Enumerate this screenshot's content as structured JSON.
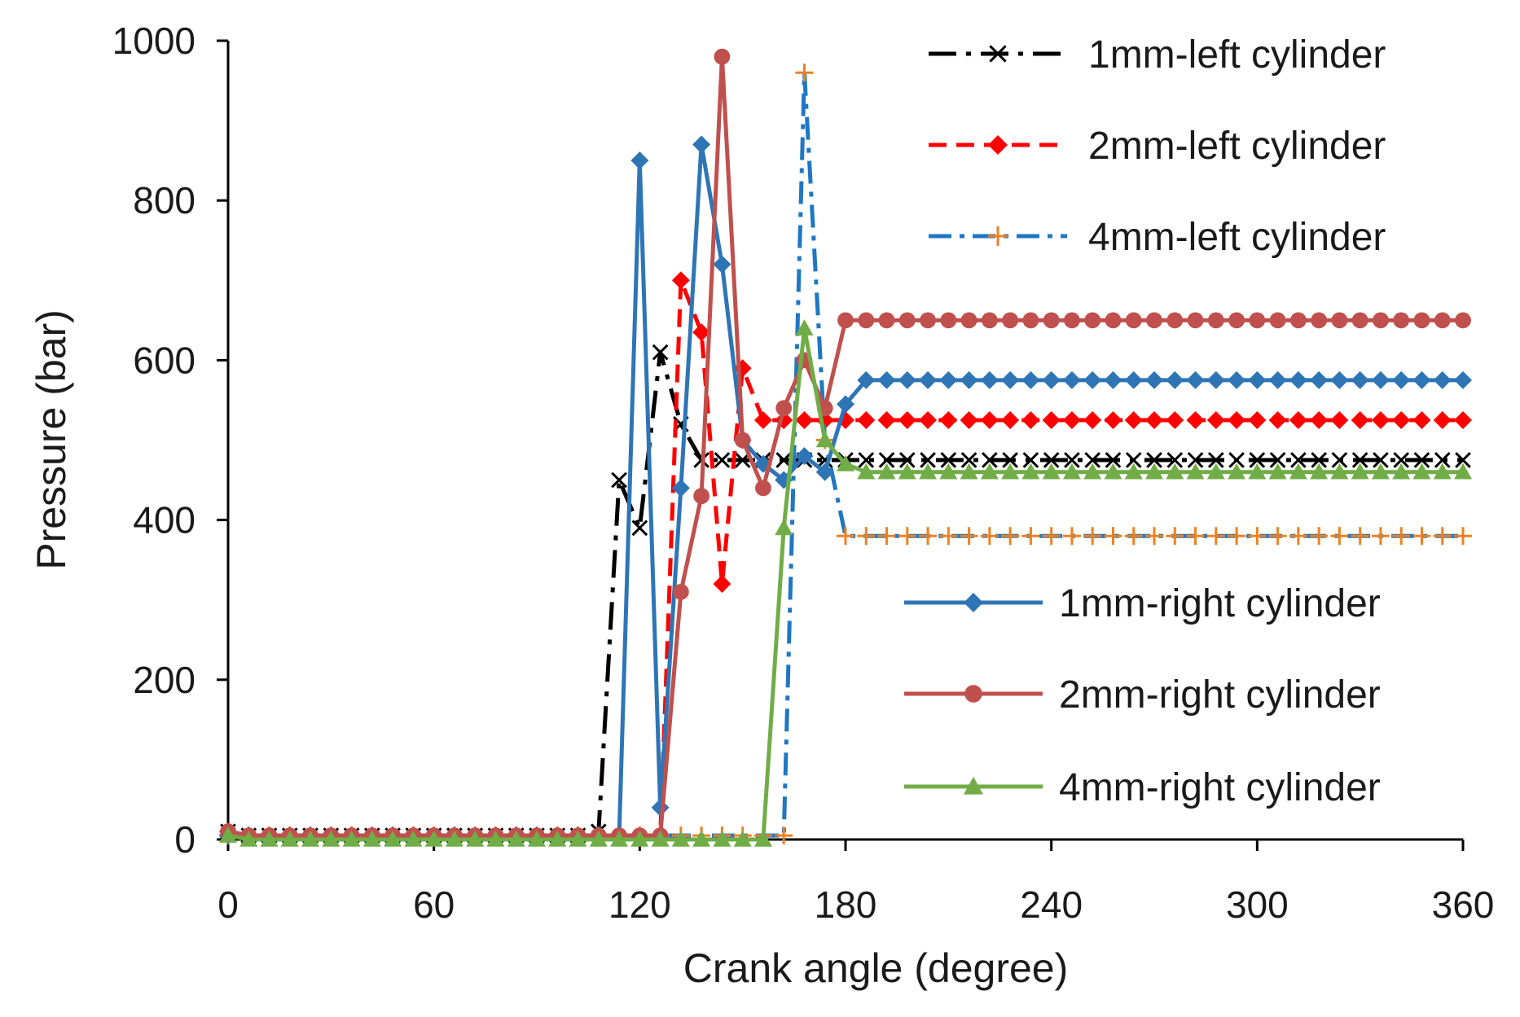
{
  "chart_data": {
    "type": "line",
    "title": "",
    "xlabel": "Crank angle (degree)",
    "ylabel": "Pressure (bar)",
    "xlim": [
      0,
      360
    ],
    "ylim": [
      0,
      1000
    ],
    "xticks": [
      0,
      60,
      120,
      180,
      240,
      300,
      360
    ],
    "yticks": [
      0,
      200,
      400,
      600,
      800,
      1000
    ],
    "grid": false,
    "legend_position": "right",
    "series": [
      {
        "name": "1mm-left cylinder",
        "color": "#000000",
        "dash": "long-dash-dot",
        "marker": "x",
        "marker_color": "#000000",
        "x": [
          0,
          6,
          12,
          18,
          24,
          30,
          36,
          42,
          48,
          54,
          60,
          66,
          72,
          78,
          84,
          90,
          96,
          102,
          108,
          114,
          120,
          126,
          132,
          138,
          144,
          150,
          156,
          162,
          168,
          174,
          180,
          186,
          192,
          198,
          204,
          210,
          216,
          222,
          228,
          234,
          240,
          246,
          252,
          258,
          264,
          270,
          276,
          282,
          288,
          294,
          300,
          306,
          312,
          318,
          324,
          330,
          336,
          342,
          348,
          354,
          360
        ],
        "y": [
          10,
          5,
          5,
          5,
          5,
          5,
          5,
          5,
          5,
          5,
          5,
          5,
          5,
          5,
          5,
          5,
          5,
          5,
          10,
          450,
          390,
          610,
          520,
          475,
          475,
          475,
          475,
          475,
          475,
          475,
          475,
          475,
          475,
          475,
          475,
          475,
          475,
          475,
          475,
          475,
          475,
          475,
          475,
          475,
          475,
          475,
          475,
          475,
          475,
          475,
          475,
          475,
          475,
          475,
          475,
          475,
          475,
          475,
          475,
          475,
          475
        ]
      },
      {
        "name": "2mm-left cylinder",
        "color": "#ff0000",
        "dash": "dash",
        "marker": "diamond",
        "marker_color": "#ff0000",
        "x": [
          0,
          6,
          12,
          18,
          24,
          30,
          36,
          42,
          48,
          54,
          60,
          66,
          72,
          78,
          84,
          90,
          96,
          102,
          108,
          114,
          120,
          126,
          132,
          138,
          144,
          150,
          156,
          162,
          168,
          174,
          180,
          186,
          192,
          198,
          204,
          210,
          216,
          222,
          228,
          234,
          240,
          246,
          252,
          258,
          264,
          270,
          276,
          282,
          288,
          294,
          300,
          306,
          312,
          318,
          324,
          330,
          336,
          342,
          348,
          354,
          360
        ],
        "y": [
          10,
          5,
          5,
          5,
          5,
          5,
          5,
          5,
          5,
          5,
          5,
          5,
          5,
          5,
          5,
          5,
          5,
          5,
          5,
          5,
          5,
          5,
          700,
          635,
          320,
          590,
          525,
          525,
          525,
          525,
          525,
          525,
          525,
          525,
          525,
          525,
          525,
          525,
          525,
          525,
          525,
          525,
          525,
          525,
          525,
          525,
          525,
          525,
          525,
          525,
          525,
          525,
          525,
          525,
          525,
          525,
          525,
          525,
          525,
          525,
          525
        ]
      },
      {
        "name": "4mm-left cylinder",
        "color": "#1f77c4",
        "dash": "dash-dot",
        "marker": "plus",
        "marker_color": "#f08020",
        "x": [
          0,
          6,
          12,
          18,
          24,
          30,
          36,
          42,
          48,
          54,
          60,
          66,
          72,
          78,
          84,
          90,
          96,
          102,
          108,
          114,
          120,
          126,
          132,
          138,
          144,
          150,
          156,
          162,
          168,
          174,
          180,
          186,
          192,
          198,
          204,
          210,
          216,
          222,
          228,
          234,
          240,
          246,
          252,
          258,
          264,
          270,
          276,
          282,
          288,
          294,
          300,
          306,
          312,
          318,
          324,
          330,
          336,
          342,
          348,
          354,
          360
        ],
        "y": [
          5,
          5,
          5,
          5,
          5,
          5,
          5,
          5,
          5,
          5,
          5,
          5,
          5,
          5,
          5,
          5,
          5,
          5,
          5,
          5,
          5,
          5,
          5,
          5,
          5,
          5,
          5,
          5,
          960,
          500,
          380,
          380,
          380,
          380,
          380,
          380,
          380,
          380,
          380,
          380,
          380,
          380,
          380,
          380,
          380,
          380,
          380,
          380,
          380,
          380,
          380,
          380,
          380,
          380,
          380,
          380,
          380,
          380,
          380,
          380,
          380
        ]
      },
      {
        "name": "1mm-right cylinder",
        "color": "#2e75b6",
        "dash": "solid",
        "marker": "diamond",
        "marker_color": "#2e75b6",
        "x": [
          0,
          6,
          12,
          18,
          24,
          30,
          36,
          42,
          48,
          54,
          60,
          66,
          72,
          78,
          84,
          90,
          96,
          102,
          108,
          114,
          120,
          126,
          132,
          138,
          144,
          150,
          156,
          162,
          168,
          174,
          180,
          186,
          192,
          198,
          204,
          210,
          216,
          222,
          228,
          234,
          240,
          246,
          252,
          258,
          264,
          270,
          276,
          282,
          288,
          294,
          300,
          306,
          312,
          318,
          324,
          330,
          336,
          342,
          348,
          354,
          360
        ],
        "y": [
          5,
          5,
          5,
          5,
          5,
          5,
          5,
          5,
          5,
          5,
          5,
          5,
          5,
          5,
          5,
          5,
          5,
          5,
          5,
          5,
          850,
          40,
          440,
          870,
          720,
          500,
          470,
          450,
          480,
          460,
          545,
          575,
          575,
          575,
          575,
          575,
          575,
          575,
          575,
          575,
          575,
          575,
          575,
          575,
          575,
          575,
          575,
          575,
          575,
          575,
          575,
          575,
          575,
          575,
          575,
          575,
          575,
          575,
          575,
          575,
          575
        ]
      },
      {
        "name": "2mm-right cylinder",
        "color": "#c0504d",
        "dash": "solid",
        "marker": "circle",
        "marker_color": "#c0504d",
        "x": [
          0,
          6,
          12,
          18,
          24,
          30,
          36,
          42,
          48,
          54,
          60,
          66,
          72,
          78,
          84,
          90,
          96,
          102,
          108,
          114,
          120,
          126,
          132,
          138,
          144,
          150,
          156,
          162,
          168,
          174,
          180,
          186,
          192,
          198,
          204,
          210,
          216,
          222,
          228,
          234,
          240,
          246,
          252,
          258,
          264,
          270,
          276,
          282,
          288,
          294,
          300,
          306,
          312,
          318,
          324,
          330,
          336,
          342,
          348,
          354,
          360
        ],
        "y": [
          10,
          5,
          5,
          5,
          5,
          5,
          5,
          5,
          5,
          5,
          5,
          5,
          5,
          5,
          5,
          5,
          5,
          5,
          5,
          5,
          5,
          5,
          310,
          430,
          980,
          500,
          440,
          540,
          600,
          540,
          650,
          650,
          650,
          650,
          650,
          650,
          650,
          650,
          650,
          650,
          650,
          650,
          650,
          650,
          650,
          650,
          650,
          650,
          650,
          650,
          650,
          650,
          650,
          650,
          650,
          650,
          650,
          650,
          650,
          650,
          650
        ]
      },
      {
        "name": "4mm-right cylinder",
        "color": "#70ad47",
        "dash": "solid",
        "marker": "triangle",
        "marker_color": "#70ad47",
        "x": [
          0,
          6,
          12,
          18,
          24,
          30,
          36,
          42,
          48,
          54,
          60,
          66,
          72,
          78,
          84,
          90,
          96,
          102,
          108,
          114,
          120,
          126,
          132,
          138,
          144,
          150,
          156,
          162,
          168,
          174,
          180,
          186,
          192,
          198,
          204,
          210,
          216,
          222,
          228,
          234,
          240,
          246,
          252,
          258,
          264,
          270,
          276,
          282,
          288,
          294,
          300,
          306,
          312,
          318,
          324,
          330,
          336,
          342,
          348,
          354,
          360
        ],
        "y": [
          5,
          0,
          0,
          0,
          0,
          0,
          0,
          0,
          0,
          0,
          0,
          0,
          0,
          0,
          0,
          0,
          0,
          0,
          0,
          0,
          0,
          0,
          0,
          0,
          0,
          0,
          0,
          390,
          640,
          500,
          470,
          460,
          460,
          460,
          460,
          460,
          460,
          460,
          460,
          460,
          460,
          460,
          460,
          460,
          460,
          460,
          460,
          460,
          460,
          460,
          460,
          460,
          460,
          460,
          460,
          460,
          460,
          460,
          460,
          460,
          460
        ]
      }
    ]
  }
}
